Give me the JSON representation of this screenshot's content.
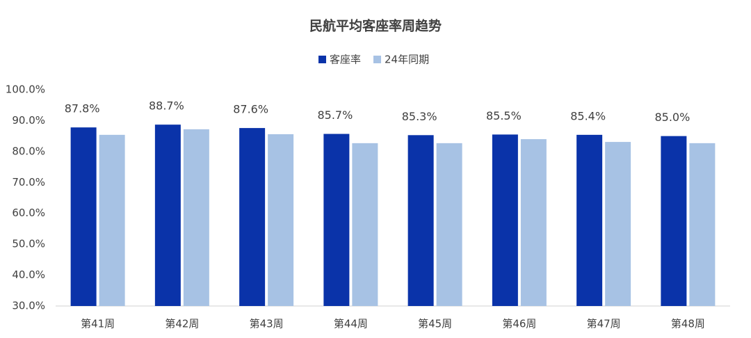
{
  "chart_data": {
    "type": "bar",
    "title": "民航平均客座率周趋势",
    "categories": [
      "第41周",
      "第42周",
      "第43周",
      "第44周",
      "第45周",
      "第46周",
      "第47周",
      "第48周"
    ],
    "series": [
      {
        "name": "客座率",
        "color": "#0a33a9",
        "values": [
          87.8,
          88.7,
          87.6,
          85.7,
          85.3,
          85.5,
          85.4,
          85.0
        ],
        "value_labels": [
          "87.8%",
          "88.7%",
          "87.6%",
          "85.7%",
          "85.3%",
          "85.5%",
          "85.4%",
          "85.0%"
        ]
      },
      {
        "name": "24年同期",
        "color": "#a7c2e4",
        "values": [
          85.4,
          87.2,
          85.6,
          82.7,
          82.7,
          84.0,
          83.1,
          82.7
        ]
      }
    ],
    "ylim": [
      30,
      100
    ],
    "yticks": [
      {
        "value": 30,
        "label": "30.0%"
      },
      {
        "value": 40,
        "label": "40.0%"
      },
      {
        "value": 50,
        "label": "50.0%"
      },
      {
        "value": 60,
        "label": "60.0%"
      },
      {
        "value": 70,
        "label": "70.0%"
      },
      {
        "value": 80,
        "label": "80.0%"
      },
      {
        "value": 90,
        "label": "90.0%"
      },
      {
        "value": 100,
        "label": "100.0%"
      }
    ],
    "legend": "top"
  }
}
